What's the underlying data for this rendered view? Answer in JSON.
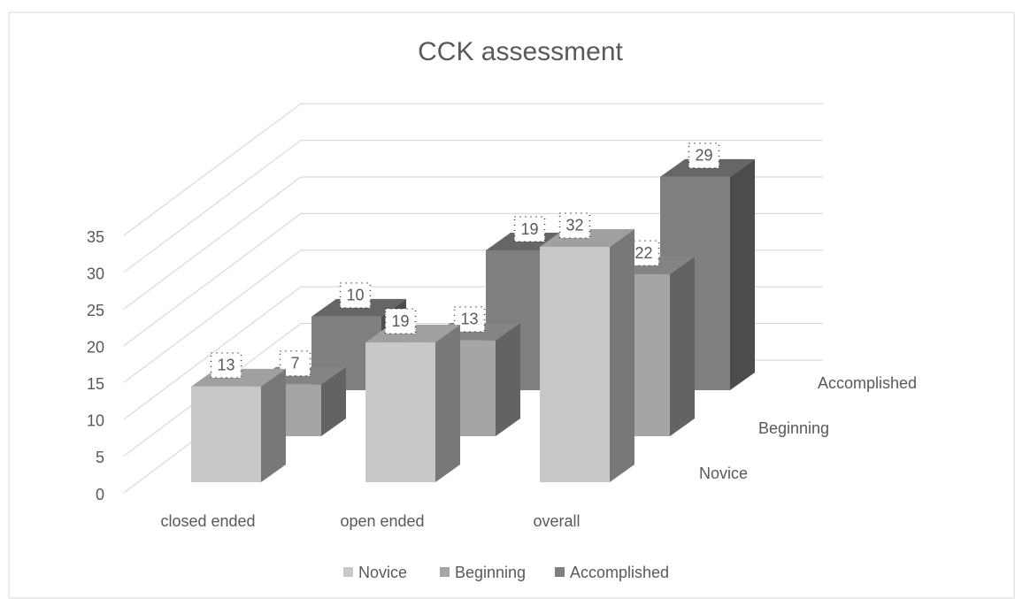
{
  "chart_data": {
    "type": "bar3d",
    "title": "CCK assessment",
    "categories": [
      "closed ended",
      "open ended",
      "overall"
    ],
    "series": [
      {
        "name": "Novice",
        "color": "#c8c8c8",
        "values": [
          13,
          19,
          32
        ]
      },
      {
        "name": "Beginning",
        "color": "#a5a5a5",
        "values": [
          7,
          13,
          22
        ]
      },
      {
        "name": "Accomplished",
        "color": "#7f7f7f",
        "values": [
          10,
          19,
          29
        ]
      }
    ],
    "ylim": [
      0,
      35
    ],
    "yticks": [
      0,
      5,
      10,
      15,
      20,
      25,
      30,
      35
    ],
    "grid": true,
    "legend": "bottom"
  }
}
